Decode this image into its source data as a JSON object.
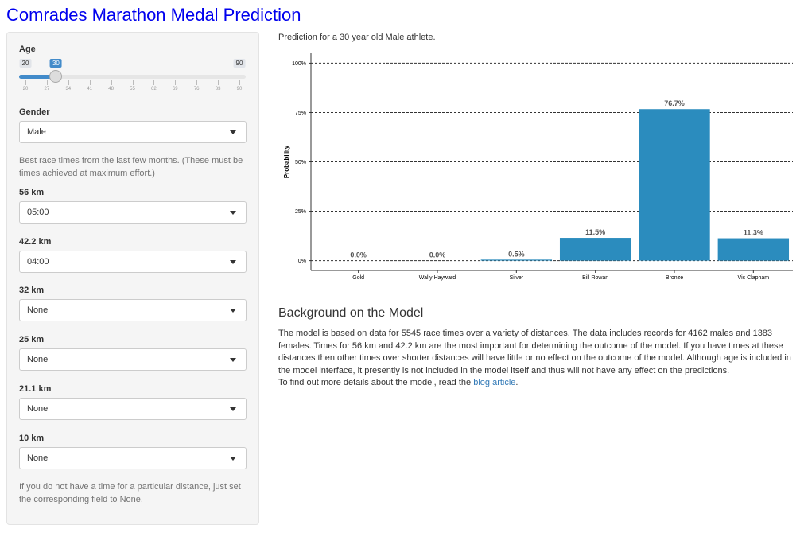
{
  "header": {
    "title": "Comrades Marathon Medal Prediction"
  },
  "sidebar": {
    "age": {
      "label": "Age",
      "min": 20,
      "max": 90,
      "value": 30,
      "ticks": [
        20,
        27,
        34,
        41,
        48,
        55,
        62,
        69,
        76,
        83,
        90
      ]
    },
    "gender": {
      "label": "Gender",
      "value": "Male"
    },
    "note": "Best race times from the last few months. (These must be times achieved at maximum effort.)",
    "fields": [
      {
        "label": "56 km",
        "value": "05:00"
      },
      {
        "label": "42.2 km",
        "value": "04:00"
      },
      {
        "label": "32 km",
        "value": "None"
      },
      {
        "label": "25 km",
        "value": "None"
      },
      {
        "label": "21.1 km",
        "value": "None"
      },
      {
        "label": "10 km",
        "value": "None"
      }
    ],
    "footnote": "If you do not have a time for a particular distance, just set the corresponding field to None."
  },
  "prediction_text": "Prediction for a 30 year old Male athlete.",
  "chart_data": {
    "type": "bar",
    "y_label": "Probability",
    "categories": [
      "Gold",
      "Wally Hayward",
      "Silver",
      "Bill Rowan",
      "Bronze",
      "Vic Clapham"
    ],
    "values": [
      0.0,
      0.0,
      0.5,
      11.5,
      76.7,
      11.3
    ],
    "value_labels": [
      "0.0%",
      "0.0%",
      "0.5%",
      "11.5%",
      "76.7%",
      "11.3%"
    ],
    "color": "#2b8cbe",
    "ylim": [
      -5,
      105
    ],
    "yticks": [
      {
        "value": 0,
        "label": "0%"
      },
      {
        "value": 25,
        "label": "25%"
      },
      {
        "value": 50,
        "label": "50%"
      },
      {
        "value": 75,
        "label": "75%"
      },
      {
        "value": 100,
        "label": "100%"
      }
    ],
    "grid": true
  },
  "background": {
    "title": "Background on the Model",
    "paragraph": "The model is based on data for 5545 race times over a variety of distances. The data includes records for 4162 males and 1383 females. Times for 56 km and 42.2 km are the most important for determining the outcome of the model. If you have times at these distances then other times over shorter distances will have little or no effect on the outcome of the model. Although age is included in the model interface, it presently is not included in the model itself and thus will not have any effect on the predictions.",
    "more_before": "To find out more details about the model, read the ",
    "link": "blog article",
    "more_after": "."
  }
}
